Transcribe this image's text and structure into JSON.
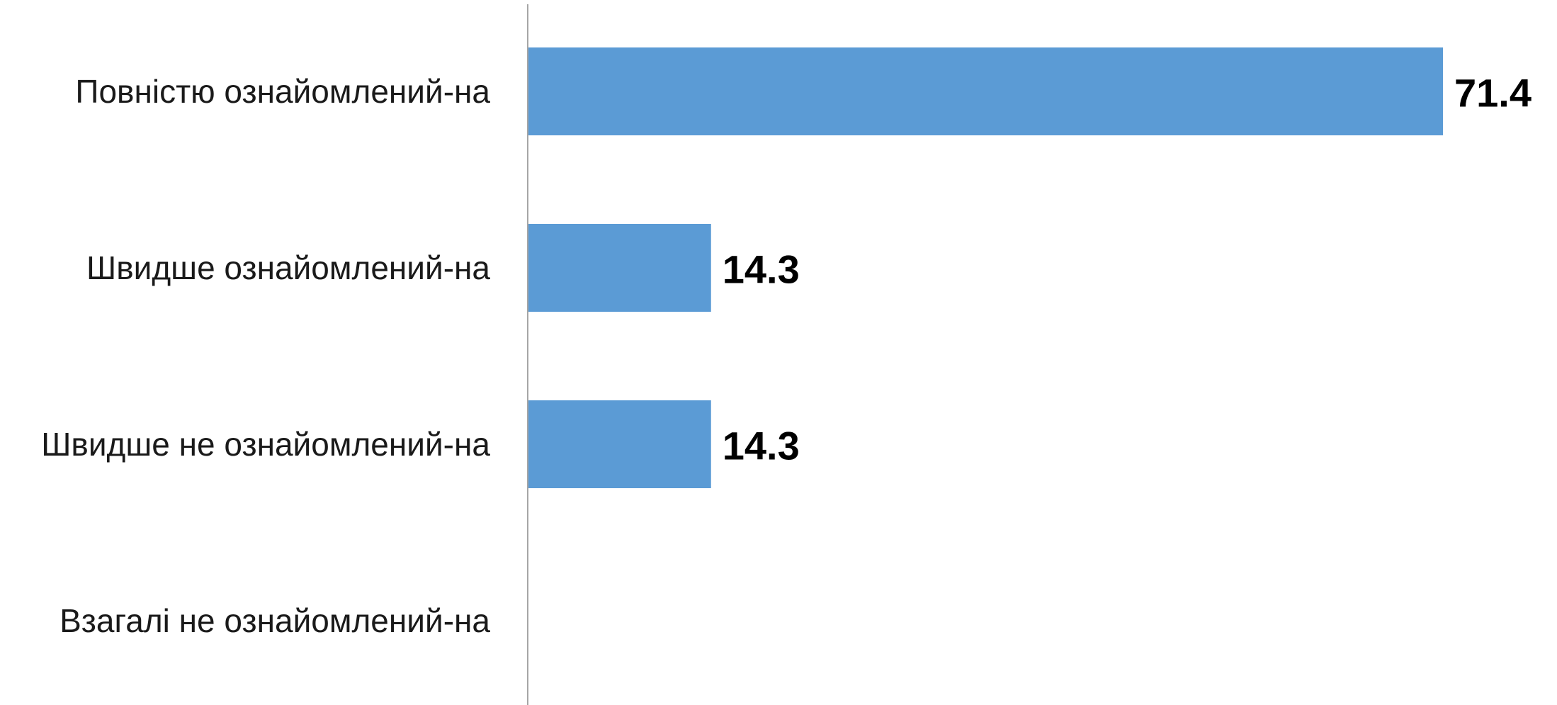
{
  "chart_data": {
    "type": "bar",
    "orientation": "horizontal",
    "title": "",
    "xlabel": "",
    "ylabel": "",
    "categories": [
      "Повністю ознайомлений-на",
      "Швидше ознайомлений-на",
      "Швидше не ознайомлений-на",
      "Взагалі не ознайомлений-на"
    ],
    "values": [
      71.4,
      14.3,
      14.3,
      0
    ],
    "value_labels": [
      "71.4",
      "14.3",
      "14.3",
      ""
    ],
    "xlim": [
      0,
      71.4
    ],
    "bar_color": "#5b9bd5",
    "axis_color": "#a6a6a6",
    "grid": false,
    "legend": "none",
    "x_axis_visible": false
  }
}
